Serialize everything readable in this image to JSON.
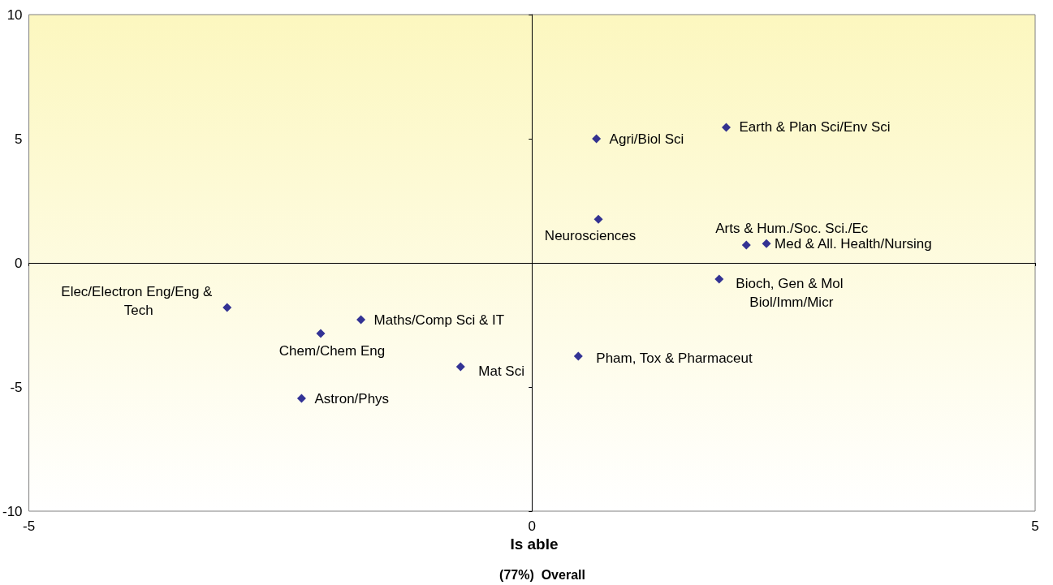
{
  "chart_data": {
    "type": "scatter",
    "xlabel": "Is able",
    "x": [
      0.64,
      1.93,
      0.66,
      2.13,
      2.33,
      1.86,
      0.46,
      -0.71,
      -1.7,
      -2.1,
      -2.29,
      -3.03
    ],
    "values": [
      5.0,
      5.46,
      1.76,
      0.72,
      0.78,
      -0.65,
      -3.76,
      -4.18,
      -2.29,
      -2.84,
      -5.46,
      -1.8
    ],
    "color": "#000080",
    "marker": "diamond",
    "xlim": [
      -5,
      5
    ],
    "xticks": [
      -5,
      0,
      5
    ],
    "ylim": [
      -10,
      10
    ],
    "yticks": [
      -10,
      -5,
      0,
      5,
      10
    ],
    "annotations": [
      {
        "text": "Agri/Biol Sci",
        "x": 0.64,
        "y": 5.0
      },
      {
        "text": "Earth & Plan Sci/Env Sci",
        "x": 1.93,
        "y": 5.46
      },
      {
        "text": "Neurosciences",
        "x": 0.66,
        "y": 1.76
      },
      {
        "text": "Arts & Hum./Soc. Sci./Ec",
        "x": 2.13,
        "y": 0.72
      },
      {
        "text": "Med & All. Health/Nursing",
        "x": 2.33,
        "y": 0.78
      },
      {
        "text": "Bioch, Gen & Mol Biol/Imm/Micr",
        "x": 1.86,
        "y": -0.65
      },
      {
        "text": "Pham, Tox & Pharmaceut",
        "x": 0.46,
        "y": -3.76
      },
      {
        "text": "Mat Sci",
        "x": -0.71,
        "y": -4.18
      },
      {
        "text": "Maths/Comp Sci & IT",
        "x": -1.7,
        "y": -2.29
      },
      {
        "text": "Chem/Chem Eng",
        "x": -2.1,
        "y": -2.84
      },
      {
        "text": "Astron/Phys",
        "x": -2.29,
        "y": -5.46
      },
      {
        "text": "Elec/Electron Eng/Eng & Tech",
        "x": -3.03,
        "y": -1.8
      },
      "(77%)  Overall"
    ]
  }
}
